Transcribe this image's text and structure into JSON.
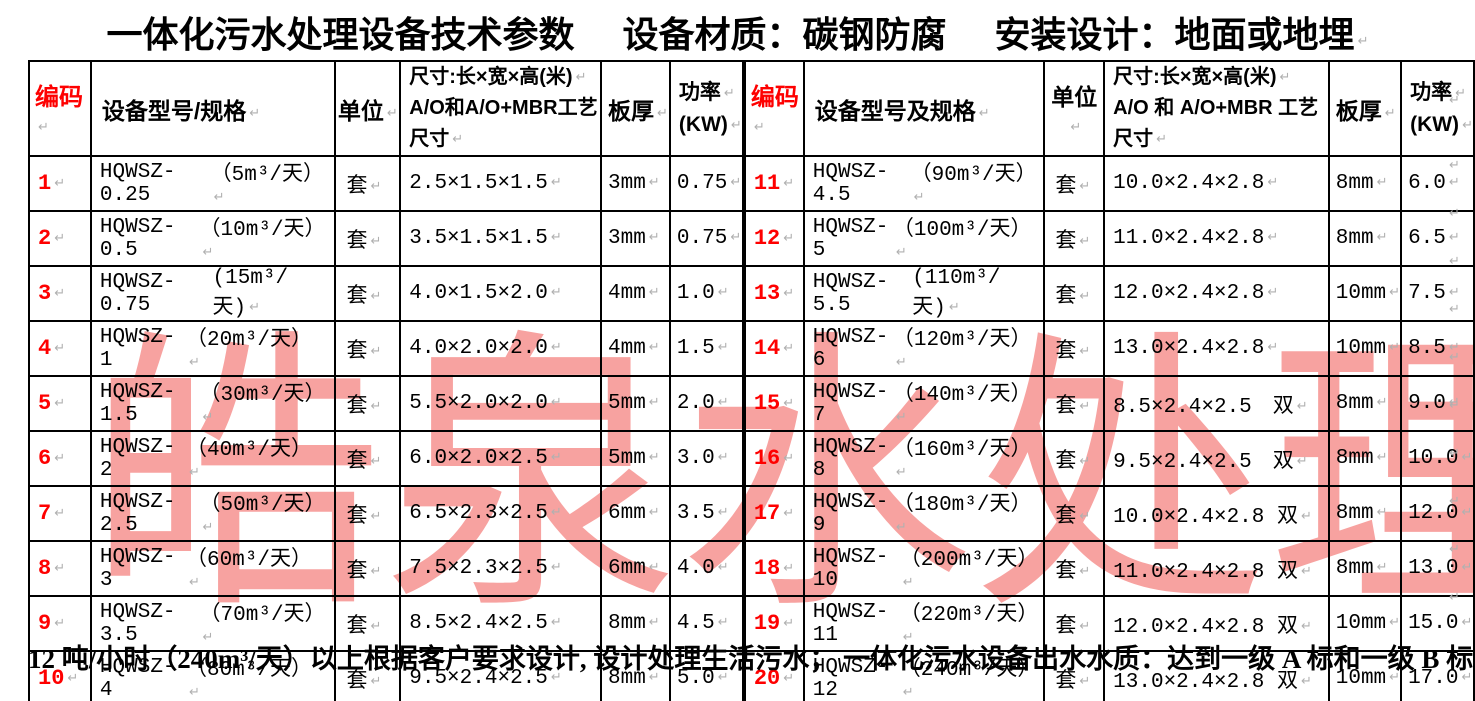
{
  "title": {
    "main": "一体化污水处理设备技术参数",
    "material": "设备材质：碳钢防腐",
    "install": "安装设计：地面或地埋"
  },
  "watermark": "皓泉水处理",
  "colors": {
    "code_red": "#fe0000",
    "watermark_pink": "#f7a2a0",
    "border_black": "#000000"
  },
  "left_table": {
    "headers": {
      "code": "编码",
      "model": "设备型号/规格",
      "unit": "单位",
      "size_line1": "尺寸:长×宽×高(米)",
      "size_line2": "A/O和A/O+MBR工艺尺寸",
      "thickness": "板厚",
      "power_line1": "功率",
      "power_line2": "(KW)"
    },
    "rows": [
      {
        "code": "1",
        "model": "HQWSZ-0.25",
        "capacity": "（5m³/天）",
        "unit": "套",
        "size": "2.5×1.5×1.5",
        "thickness": "3mm",
        "power": "0.75"
      },
      {
        "code": "2",
        "model": "HQWSZ-0.5",
        "capacity": "（10m³/天）",
        "unit": "套",
        "size": "3.5×1.5×1.5",
        "thickness": "3mm",
        "power": "0.75"
      },
      {
        "code": "3",
        "model": "HQWSZ-0.75",
        "capacity": "(15m³/天)",
        "unit": "套",
        "size": "4.0×1.5×2.0",
        "thickness": "4mm",
        "power": "1.0"
      },
      {
        "code": "4",
        "model": "HQWSZ-1",
        "capacity": "（20m³/天）",
        "unit": "套",
        "size": "4.0×2.0×2.0",
        "thickness": "4mm",
        "power": "1.5"
      },
      {
        "code": "5",
        "model": "HQWSZ-1.5",
        "capacity": "（30m³/天）",
        "unit": "套",
        "size": "5.5×2.0×2.0",
        "thickness": "5mm",
        "power": "2.0"
      },
      {
        "code": "6",
        "model": "HQWSZ-2",
        "capacity": "（40m³/天）",
        "unit": "套",
        "size": "6.0×2.0×2.5",
        "thickness": "5mm",
        "power": "3.0"
      },
      {
        "code": "7",
        "model": "HQWSZ-2.5",
        "capacity": "（50m³/天）",
        "unit": "套",
        "size": "6.5×2.3×2.5",
        "thickness": "6mm",
        "power": "3.5"
      },
      {
        "code": "8",
        "model": "HQWSZ-3",
        "capacity": "（60m³/天）",
        "unit": "套",
        "size": "7.5×2.3×2.5",
        "thickness": "6mm",
        "power": "4.0"
      },
      {
        "code": "9",
        "model": "HQWSZ-3.5",
        "capacity": "（70m³/天）",
        "unit": "套",
        "size": "8.5×2.4×2.5",
        "thickness": "8mm",
        "power": "4.5"
      },
      {
        "code": "10",
        "model": "HQWSZ-4",
        "capacity": "（80m³/天）",
        "unit": "套",
        "size": "9.5×2.4×2.5",
        "thickness": "8mm",
        "power": "5.0"
      }
    ]
  },
  "right_table": {
    "headers": {
      "code": "编码",
      "model": "设备型号及规格",
      "unit": "单位",
      "size_line1": "尺寸:长×宽×高(米)",
      "size_line2": "A/O 和 A/O+MBR 工艺尺寸",
      "thickness": "板厚",
      "power_line1": "功率",
      "power_line2": "(KW)"
    },
    "rows": [
      {
        "code": "11",
        "model": "HQWSZ-4.5",
        "capacity": "（90m³/天）",
        "unit": "套",
        "size": "10.0×2.4×2.8",
        "thickness": "8mm",
        "power": "6.0"
      },
      {
        "code": "12",
        "model": "HQWSZ-5",
        "capacity": "（100m³/天）",
        "unit": "套",
        "size": "11.0×2.4×2.8",
        "thickness": "8mm",
        "power": "6.5"
      },
      {
        "code": "13",
        "model": "HQWSZ-5.5",
        "capacity": "(110m³/天)",
        "unit": "套",
        "size": "12.0×2.4×2.8",
        "thickness": "10mm",
        "power": "7.5"
      },
      {
        "code": "14",
        "model": "HQWSZ-6",
        "capacity": "（120m³/天）",
        "unit": "套",
        "size": "13.0×2.4×2.8",
        "thickness": "10mm",
        "power": "8.5"
      },
      {
        "code": "15",
        "model": "HQWSZ-7",
        "capacity": "（140m³/天）",
        "unit": "套",
        "size": "8.5×2.4×2.5　双",
        "thickness": "8mm",
        "power": "9.0"
      },
      {
        "code": "16",
        "model": "HQWSZ-8",
        "capacity": "（160m³/天）",
        "unit": "套",
        "size": "9.5×2.4×2.5　双",
        "thickness": "8mm",
        "power": "10.0"
      },
      {
        "code": "17",
        "model": "HQWSZ-9",
        "capacity": "（180m³/天）",
        "unit": "套",
        "size": "10.0×2.4×2.8 双",
        "thickness": "8mm",
        "power": "12.0"
      },
      {
        "code": "18",
        "model": "HQWSZ-10",
        "capacity": "（200m³/天）",
        "unit": "套",
        "size": "11.0×2.4×2.8 双",
        "thickness": "8mm",
        "power": "13.0"
      },
      {
        "code": "19",
        "model": "HQWSZ-11",
        "capacity": "（220m³/天）",
        "unit": "套",
        "size": "12.0×2.4×2.8 双",
        "thickness": "10mm",
        "power": "15.0"
      },
      {
        "code": "20",
        "model": "HQWSZ-12",
        "capacity": "（240m³/天）",
        "unit": "套",
        "size": "13.0×2.4×2.8 双",
        "thickness": "10mm",
        "power": "17.0"
      }
    ]
  },
  "footer": "12 吨/小时（240m³/天）以上根据客户要求设计, 设计处理生活污水； 一体化污水设备出水水质：达到一级 A 标和一级 B 标"
}
